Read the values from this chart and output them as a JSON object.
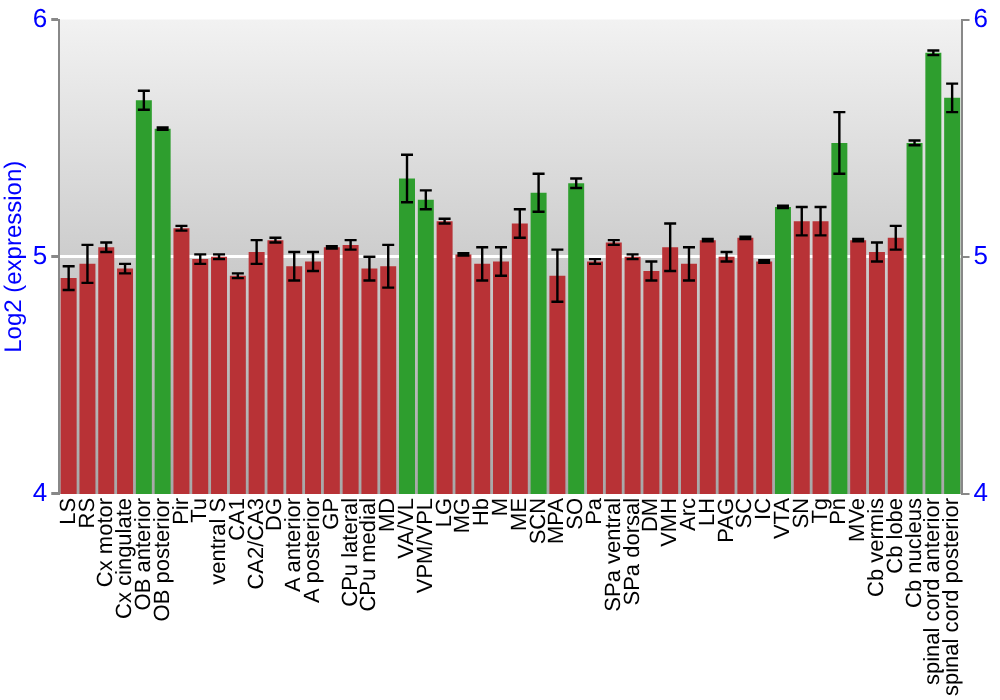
{
  "chart_data": {
    "type": "bar",
    "ylabel": "Log2 (expression)",
    "categories": [
      "LS",
      "RS",
      "Cx motor",
      "Cx cingulate",
      "OB anterior",
      "OB posterior",
      "Pir",
      "Tu",
      "ventral S",
      "CA1",
      "CA2/CA3",
      "DG",
      "A anterior",
      "A posterior",
      "GP",
      "CPu lateral",
      "CPu medial",
      "MD",
      "VA/VL",
      "VPM/VPL",
      "LG",
      "MG",
      "Hb",
      "M",
      "ME",
      "SCN",
      "MPA",
      "SO",
      "Pa",
      "SPa ventral",
      "SPa dorsal",
      "DM",
      "VMH",
      "Arc",
      "LH",
      "PAG",
      "SC",
      "IC",
      "VTA",
      "SN",
      "Tg",
      "Pn",
      "MVe",
      "Cb vermis",
      "Cb lobe",
      "Cb nucleus",
      "spinal cord anterior",
      "spinal cord posterior"
    ],
    "values": [
      4.91,
      4.97,
      5.04,
      4.95,
      5.66,
      5.54,
      5.12,
      4.99,
      5.0,
      4.92,
      5.02,
      5.07,
      4.96,
      4.98,
      5.04,
      5.05,
      4.95,
      4.96,
      5.33,
      5.24,
      5.15,
      5.01,
      4.97,
      4.98,
      5.14,
      5.27,
      4.92,
      5.31,
      4.98,
      5.06,
      5.0,
      4.94,
      5.04,
      4.97,
      5.07,
      5.0,
      5.08,
      4.98,
      5.21,
      5.15,
      5.15,
      5.48,
      5.07,
      5.02,
      5.08,
      5.48,
      5.86,
      5.67
    ],
    "errors": [
      0.05,
      0.08,
      0.02,
      0.02,
      0.04,
      0.005,
      0.01,
      0.02,
      0.01,
      0.01,
      0.05,
      0.01,
      0.06,
      0.04,
      0.005,
      0.02,
      0.05,
      0.09,
      0.1,
      0.04,
      0.01,
      0.005,
      0.07,
      0.06,
      0.06,
      0.08,
      0.11,
      0.02,
      0.01,
      0.01,
      0.01,
      0.04,
      0.1,
      0.07,
      0.005,
      0.02,
      0.005,
      0.005,
      0.005,
      0.06,
      0.06,
      0.13,
      0.005,
      0.04,
      0.05,
      0.01,
      0.01,
      0.06
    ],
    "colors": [
      "#b83236",
      "#b83236",
      "#b83236",
      "#b83236",
      "#2e9e2e",
      "#2e9e2e",
      "#b83236",
      "#b83236",
      "#b83236",
      "#b83236",
      "#b83236",
      "#b83236",
      "#b83236",
      "#b83236",
      "#b83236",
      "#b83236",
      "#b83236",
      "#b83236",
      "#2e9e2e",
      "#2e9e2e",
      "#b83236",
      "#b83236",
      "#b83236",
      "#b83236",
      "#b83236",
      "#2e9e2e",
      "#b83236",
      "#2e9e2e",
      "#b83236",
      "#b83236",
      "#b83236",
      "#b83236",
      "#b83236",
      "#b83236",
      "#b83236",
      "#b83236",
      "#b83236",
      "#b83236",
      "#2e9e2e",
      "#b83236",
      "#b83236",
      "#2e9e2e",
      "#b83236",
      "#b83236",
      "#b83236",
      "#2e9e2e",
      "#2e9e2e",
      "#2e9e2e"
    ],
    "ylim": [
      4,
      6
    ],
    "yticks": [
      4,
      5,
      6
    ],
    "y2lim": [
      4,
      6
    ],
    "y2ticks": [
      4,
      5,
      6
    ],
    "grid": "y"
  }
}
